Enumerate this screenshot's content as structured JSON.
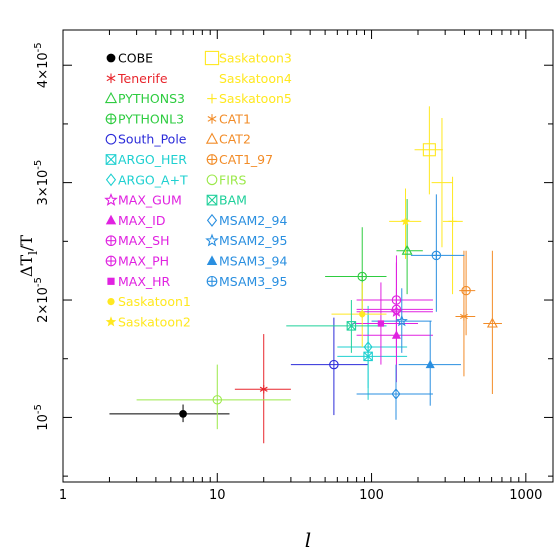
{
  "chart_data": {
    "type": "scatter",
    "xlabel": "l",
    "ylabel": "ΔT_l/T",
    "xscale": "log",
    "xlim": [
      1,
      1500
    ],
    "ylim": [
      4.5e-06,
      4.3e-05
    ],
    "x_ticks": [
      {
        "value": 1,
        "label": "1"
      },
      {
        "value": 10,
        "label": "10"
      },
      {
        "value": 100,
        "label": "100"
      },
      {
        "value": 1000,
        "label": "1000"
      }
    ],
    "y_ticks": [
      {
        "value": 1e-05,
        "mant": "10",
        "exp": "-5"
      },
      {
        "value": 2e-05,
        "mant": "2×10",
        "exp": "-5"
      },
      {
        "value": 3e-05,
        "mant": "3×10",
        "exp": "-5"
      },
      {
        "value": 4e-05,
        "mant": "4×10",
        "exp": "-5"
      }
    ],
    "series": [
      {
        "name": "COBE",
        "color": "#000000",
        "marker": "filled-circle",
        "points": [
          {
            "x": 6,
            "y": 1.03e-05,
            "xlo": 2,
            "xhi": 12,
            "ylo": 9.6e-06,
            "yhi": 1.11e-05
          }
        ]
      },
      {
        "name": "Tenerife",
        "color": "#e8262d",
        "marker": "asterisk",
        "points": [
          {
            "x": 20,
            "y": 1.24e-05,
            "xlo": 13,
            "xhi": 30,
            "ylo": 7.8e-06,
            "yhi": 1.71e-05
          }
        ]
      },
      {
        "name": "PYTHONS3",
        "color": "#2ecc40",
        "marker": "triangle",
        "points": [
          {
            "x": 170,
            "y": 2.42e-05,
            "xlo": 145,
            "xhi": 215,
            "ylo": 2.05e-05,
            "yhi": 2.86e-05
          }
        ]
      },
      {
        "name": "PYTHONL3",
        "color": "#2ecc40",
        "marker": "circle-plus",
        "points": [
          {
            "x": 87,
            "y": 2.2e-05,
            "xlo": 50,
            "xhi": 125,
            "ylo": 1.85e-05,
            "yhi": 2.62e-05
          }
        ]
      },
      {
        "name": "South_Pole",
        "color": "#2b2bd9",
        "marker": "circle",
        "points": [
          {
            "x": 57,
            "y": 1.45e-05,
            "xlo": 30,
            "xhi": 95,
            "ylo": 1.02e-05,
            "yhi": 1.85e-05
          }
        ]
      },
      {
        "name": "ARGO_HER",
        "color": "#1fd0d0",
        "marker": "hourglass-square",
        "points": [
          {
            "x": 95,
            "y": 1.52e-05,
            "xlo": 60,
            "xhi": 170,
            "ylo": 1.15e-05,
            "yhi": 1.9e-05
          }
        ]
      },
      {
        "name": "ARGO_A+T",
        "color": "#1fd0d0",
        "marker": "diamond",
        "points": [
          {
            "x": 95,
            "y": 1.6e-05,
            "xlo": 60,
            "xhi": 170,
            "ylo": 1.25e-05,
            "yhi": 1.95e-05
          }
        ]
      },
      {
        "name": "MAX_GUM",
        "color": "#e022e0",
        "marker": "open-star",
        "points": [
          {
            "x": 145,
            "y": 1.9e-05,
            "xlo": 80,
            "xhi": 250,
            "ylo": 1.45e-05,
            "yhi": 2.32e-05
          }
        ]
      },
      {
        "name": "MAX_ID",
        "color": "#e022e0",
        "marker": "filled-triangle",
        "points": [
          {
            "x": 145,
            "y": 1.7e-05,
            "xlo": 80,
            "xhi": 250,
            "ylo": 1.3e-05,
            "yhi": 2.1e-05
          }
        ]
      },
      {
        "name": "MAX_SH",
        "color": "#e022e0",
        "marker": "circle-plus",
        "points": [
          {
            "x": 145,
            "y": 1.92e-05,
            "xlo": 80,
            "xhi": 250,
            "ylo": 1.55e-05,
            "yhi": 2.32e-05
          }
        ]
      },
      {
        "name": "MAX_PH",
        "color": "#e022e0",
        "marker": "circle-plus",
        "points": [
          {
            "x": 145,
            "y": 2e-05,
            "xlo": 80,
            "xhi": 250,
            "ylo": 1.6e-05,
            "yhi": 2.38e-05
          }
        ]
      },
      {
        "name": "MAX_HR",
        "color": "#e022e0",
        "marker": "filled-square",
        "points": [
          {
            "x": 115,
            "y": 1.8e-05,
            "xlo": 75,
            "xhi": 200,
            "ylo": 1.45e-05,
            "yhi": 2.15e-05
          }
        ]
      },
      {
        "name": "Saskatoon1",
        "color": "#ffe820",
        "marker": "filled-dot",
        "points": [
          {
            "x": 87,
            "y": 1.88e-05,
            "xlo": 55,
            "xhi": 125,
            "ylo": 1.6e-05,
            "yhi": 2.15e-05
          }
        ]
      },
      {
        "name": "Saskatoon2",
        "color": "#ffe820",
        "marker": "filled-star",
        "points": [
          {
            "x": 166,
            "y": 2.67e-05,
            "xlo": 130,
            "xhi": 210,
            "ylo": 2.35e-05,
            "yhi": 2.95e-05
          }
        ]
      },
      {
        "name": "Saskatoon3",
        "color": "#ffe820",
        "marker": "open-square",
        "points": [
          {
            "x": 237,
            "y": 3.28e-05,
            "xlo": 190,
            "xhi": 290,
            "ylo": 2.9e-05,
            "yhi": 3.65e-05
          }
        ]
      },
      {
        "name": "Saskatoon4",
        "color": "#ffe820",
        "marker": "none",
        "points": [
          {
            "x": 286,
            "y": 3e-05,
            "xlo": 245,
            "xhi": 335,
            "ylo": 2.45e-05,
            "yhi": 3.55e-05
          }
        ]
      },
      {
        "name": "Saskatoon5",
        "color": "#ffe820",
        "marker": "plus",
        "points": [
          {
            "x": 335,
            "y": 2.67e-05,
            "xlo": 290,
            "xhi": 390,
            "ylo": 2.05e-05,
            "yhi": 3.05e-05
          }
        ]
      },
      {
        "name": "CAT1",
        "color": "#f28c28",
        "marker": "asterisk",
        "points": [
          {
            "x": 397,
            "y": 1.86e-05,
            "xlo": 350,
            "xhi": 470,
            "ylo": 1.35e-05,
            "yhi": 2.42e-05
          }
        ]
      },
      {
        "name": "CAT2",
        "color": "#f28c28",
        "marker": "triangle",
        "points": [
          {
            "x": 607,
            "y": 1.8e-05,
            "xlo": 530,
            "xhi": 700,
            "ylo": 1.2e-05,
            "yhi": 2.42e-05
          }
        ]
      },
      {
        "name": "CAT1_97",
        "color": "#f28c28",
        "marker": "circle-plus",
        "points": [
          {
            "x": 410,
            "y": 2.08e-05,
            "xlo": 370,
            "xhi": 470,
            "ylo": 1.7e-05,
            "yhi": 2.42e-05
          }
        ]
      },
      {
        "name": "FIRS",
        "color": "#9be94a",
        "marker": "circle",
        "points": [
          {
            "x": 10,
            "y": 1.15e-05,
            "xlo": 3,
            "xhi": 30,
            "ylo": 9e-06,
            "yhi": 1.45e-05
          }
        ]
      },
      {
        "name": "BAM",
        "color": "#1fd09a",
        "marker": "hourglass-square",
        "points": [
          {
            "x": 74,
            "y": 1.78e-05,
            "xlo": 28,
            "xhi": 125,
            "ylo": 1.55e-05,
            "yhi": 2e-05
          }
        ]
      },
      {
        "name": "MSAM2_94",
        "color": "#2a8fe0",
        "marker": "diamond",
        "points": [
          {
            "x": 144,
            "y": 1.2e-05,
            "xlo": 80,
            "xhi": 250,
            "ylo": 9.8e-06,
            "yhi": 1.45e-05
          }
        ]
      },
      {
        "name": "MSAM2_95",
        "color": "#2a8fe0",
        "marker": "open-star",
        "points": [
          {
            "x": 157,
            "y": 1.82e-05,
            "xlo": 100,
            "xhi": 245,
            "ylo": 1.55e-05,
            "yhi": 2.1e-05
          }
        ]
      },
      {
        "name": "MSAM3_94",
        "color": "#2a8fe0",
        "marker": "filled-triangle",
        "points": [
          {
            "x": 240,
            "y": 1.45e-05,
            "xlo": 150,
            "xhi": 380,
            "ylo": 1.1e-05,
            "yhi": 1.82e-05
          }
        ]
      },
      {
        "name": "MSAM3_95",
        "color": "#2a8fe0",
        "marker": "circle-plus",
        "points": [
          {
            "x": 263,
            "y": 2.38e-05,
            "xlo": 180,
            "xhi": 400,
            "ylo": 1.9e-05,
            "yhi": 2.9e-05
          }
        ]
      }
    ],
    "legend": {
      "placement": "top-left",
      "columns": 2,
      "column_breaks": [
        14
      ]
    },
    "grid": false
  }
}
